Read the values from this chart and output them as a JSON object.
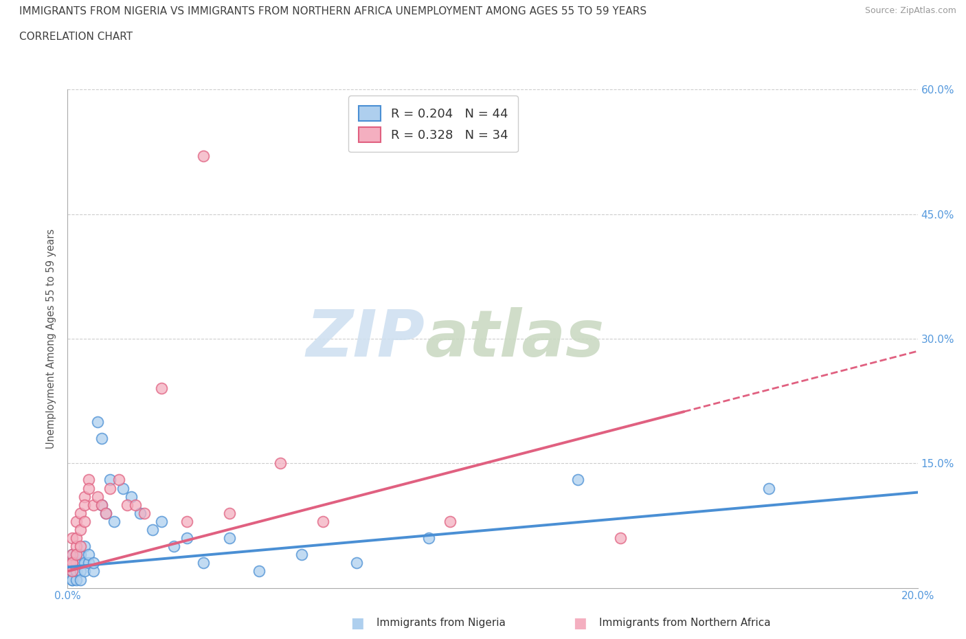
{
  "title_line1": "IMMIGRANTS FROM NIGERIA VS IMMIGRANTS FROM NORTHERN AFRICA UNEMPLOYMENT AMONG AGES 55 TO 59 YEARS",
  "title_line2": "CORRELATION CHART",
  "source_text": "Source: ZipAtlas.com",
  "ylabel": "Unemployment Among Ages 55 to 59 years",
  "xlabel_nigeria": "Immigrants from Nigeria",
  "xlabel_n_africa": "Immigrants from Northern Africa",
  "xlim": [
    0.0,
    0.2
  ],
  "ylim": [
    0.0,
    0.6
  ],
  "R_nigeria": 0.204,
  "N_nigeria": 44,
  "R_n_africa": 0.328,
  "N_n_africa": 34,
  "nigeria_color": "#aecfee",
  "n_africa_color": "#f4afc0",
  "nigeria_line_color": "#4a8fd4",
  "n_africa_line_color": "#e06080",
  "watermark_zip_color": "#c8d8ee",
  "watermark_atlas_color": "#c8d8c8",
  "grid_color": "#cccccc",
  "title_color": "#404040",
  "axis_tick_color": "#5599dd",
  "nigeria_scatter_x": [
    0.001,
    0.001,
    0.001,
    0.001,
    0.001,
    0.001,
    0.001,
    0.002,
    0.002,
    0.002,
    0.002,
    0.002,
    0.003,
    0.003,
    0.003,
    0.003,
    0.004,
    0.004,
    0.004,
    0.005,
    0.005,
    0.006,
    0.006,
    0.007,
    0.008,
    0.008,
    0.009,
    0.01,
    0.011,
    0.013,
    0.015,
    0.017,
    0.02,
    0.022,
    0.025,
    0.028,
    0.032,
    0.038,
    0.045,
    0.055,
    0.068,
    0.085,
    0.12,
    0.165
  ],
  "nigeria_scatter_y": [
    0.02,
    0.03,
    0.01,
    0.04,
    0.02,
    0.03,
    0.01,
    0.02,
    0.04,
    0.03,
    0.01,
    0.02,
    0.03,
    0.02,
    0.04,
    0.01,
    0.03,
    0.05,
    0.02,
    0.03,
    0.04,
    0.02,
    0.03,
    0.2,
    0.18,
    0.1,
    0.09,
    0.13,
    0.08,
    0.12,
    0.11,
    0.09,
    0.07,
    0.08,
    0.05,
    0.06,
    0.03,
    0.06,
    0.02,
    0.04,
    0.03,
    0.06,
    0.13,
    0.12
  ],
  "n_africa_scatter_x": [
    0.001,
    0.001,
    0.001,
    0.001,
    0.001,
    0.002,
    0.002,
    0.002,
    0.002,
    0.003,
    0.003,
    0.003,
    0.004,
    0.004,
    0.004,
    0.005,
    0.005,
    0.006,
    0.007,
    0.008,
    0.009,
    0.01,
    0.012,
    0.014,
    0.016,
    0.018,
    0.022,
    0.028,
    0.032,
    0.038,
    0.05,
    0.06,
    0.09,
    0.13
  ],
  "n_africa_scatter_y": [
    0.03,
    0.02,
    0.04,
    0.06,
    0.03,
    0.05,
    0.08,
    0.04,
    0.06,
    0.07,
    0.09,
    0.05,
    0.11,
    0.1,
    0.08,
    0.13,
    0.12,
    0.1,
    0.11,
    0.1,
    0.09,
    0.12,
    0.13,
    0.1,
    0.1,
    0.09,
    0.24,
    0.08,
    0.52,
    0.09,
    0.15,
    0.08,
    0.08,
    0.06
  ],
  "nig_line_x0": 0.0,
  "nig_line_y0": 0.025,
  "nig_line_x1": 0.2,
  "nig_line_y1": 0.115,
  "nafr_line_x0": 0.0,
  "nafr_line_y0": 0.02,
  "nafr_line_x1_solid": 0.145,
  "nafr_line_x1": 0.2,
  "nafr_line_y1": 0.285
}
